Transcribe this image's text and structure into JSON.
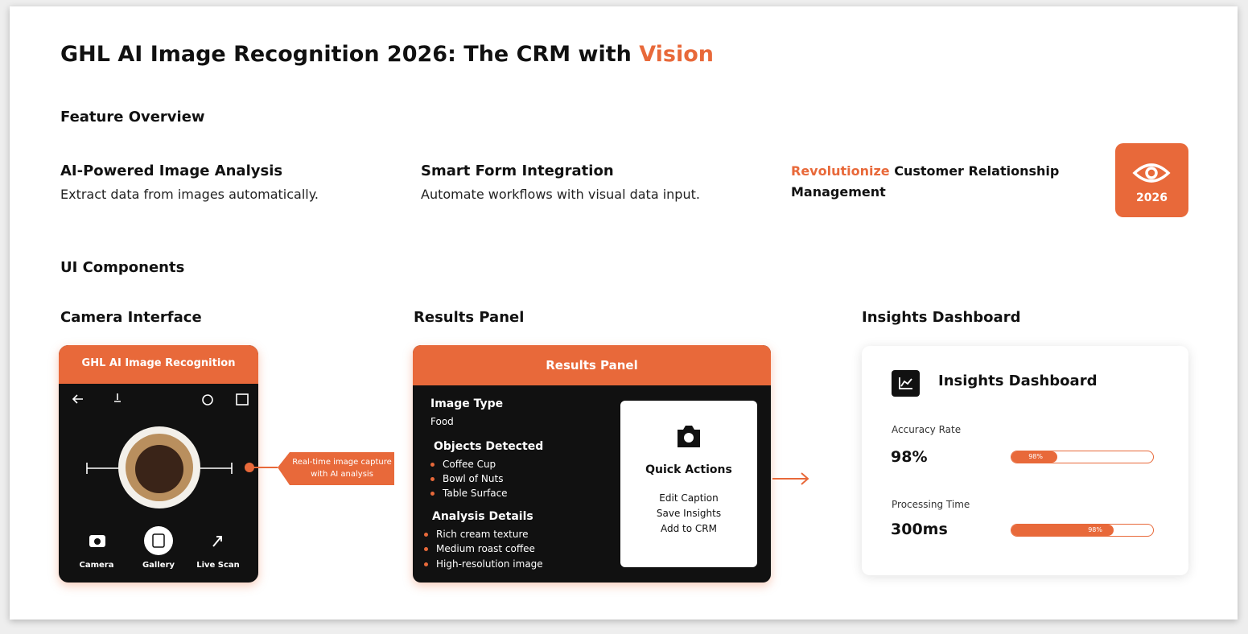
{
  "header": {
    "title": "GHL AI Image Recognition 2026: The CRM with",
    "title_highlight": "Vision"
  },
  "feature_overview": {
    "heading": "Feature Overview",
    "features": [
      {
        "title": "AI-Powered Image Analysis",
        "text": "Extract data from images automatically."
      },
      {
        "title": "Smart Form Integration",
        "text": "Automate workflows with visual data input."
      }
    ],
    "tagline_highlight": "Revolutionize",
    "tagline": "Customer Relationship Management",
    "badge": "2026"
  },
  "ui_components": {
    "heading": "UI Components",
    "camera": {
      "heading": "Camera Interface",
      "app_title": "GHL AI Image Recognition",
      "callout": "Real-time image capture with AI analysis",
      "nav": [
        "Camera",
        "Gallery",
        "Live Scan"
      ]
    },
    "results": {
      "heading": "Results Panel",
      "panel_title": "Results Panel",
      "image_type_label": "Image Type",
      "image_type": "Food",
      "objects_label": "Objects Detected",
      "objects": [
        "Coffee Cup",
        "Bowl of Nuts",
        "Table Surface"
      ],
      "analysis_label": "Analysis Details",
      "analysis": [
        "Rich cream texture",
        "Medium roast coffee",
        "High-resolution image"
      ],
      "quick_actions_title": "Quick Actions",
      "quick_actions": [
        "Edit Caption",
        "Save Insights",
        "Add to CRM"
      ]
    },
    "insights": {
      "heading": "Insights Dashboard",
      "card_title": "Insights Dashboard",
      "metrics": [
        {
          "label": "Accuracy Rate",
          "value": "98%",
          "bar_label": "98%"
        },
        {
          "label": "Processing Time",
          "value": "300ms",
          "bar_label": "98%"
        }
      ]
    }
  }
}
